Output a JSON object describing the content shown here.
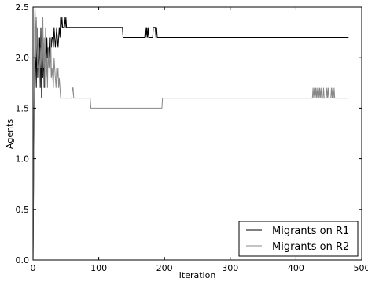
{
  "chart_data": {
    "type": "line",
    "title": "",
    "xlabel": "Iteration",
    "ylabel": "Agents",
    "xlim": [
      0,
      500
    ],
    "ylim": [
      0.0,
      2.5
    ],
    "xticks": [
      "0",
      "100",
      "200",
      "300",
      "400",
      "500"
    ],
    "yticks": [
      "0.0",
      "0.5",
      "1.0",
      "1.5",
      "2.0",
      "2.5"
    ],
    "grid": false,
    "legend_position": "bottom-right",
    "series": [
      {
        "name": "Migrants on R1",
        "color": "#000000",
        "points": [
          [
            0,
            0
          ],
          [
            2,
            1.8
          ],
          [
            3,
            2.5
          ],
          [
            4,
            2.0
          ],
          [
            5,
            1.7
          ],
          [
            6,
            2.3
          ],
          [
            7,
            1.8
          ],
          [
            8,
            2.1
          ],
          [
            9,
            1.9
          ],
          [
            10,
            2.2
          ],
          [
            11,
            1.7
          ],
          [
            12,
            2.3
          ],
          [
            13,
            1.6
          ],
          [
            14,
            2.0
          ],
          [
            15,
            1.8
          ],
          [
            16,
            2.1
          ],
          [
            17,
            1.7
          ],
          [
            18,
            2.0
          ],
          [
            19,
            2.1
          ],
          [
            20,
            1.9
          ],
          [
            21,
            2.2
          ],
          [
            22,
            2.0
          ],
          [
            23,
            2.1
          ],
          [
            24,
            2.0
          ],
          [
            25,
            2.2
          ],
          [
            26,
            2.1
          ],
          [
            27,
            2.2
          ],
          [
            28,
            2.1
          ],
          [
            29,
            2.2
          ],
          [
            30,
            2.2
          ],
          [
            31,
            2.1
          ],
          [
            32,
            2.3
          ],
          [
            33,
            2.2
          ],
          [
            34,
            2.1
          ],
          [
            35,
            2.2
          ],
          [
            36,
            2.3
          ],
          [
            37,
            2.2
          ],
          [
            38,
            2.1
          ],
          [
            39,
            2.2
          ],
          [
            40,
            2.3
          ],
          [
            41,
            2.2
          ],
          [
            42,
            2.4
          ],
          [
            43,
            2.3
          ],
          [
            44,
            2.4
          ],
          [
            45,
            2.3
          ],
          [
            47,
            2.3
          ],
          [
            48,
            2.4
          ],
          [
            49,
            2.3
          ],
          [
            50,
            2.4
          ],
          [
            51,
            2.3
          ],
          [
            136,
            2.3
          ],
          [
            137,
            2.2
          ],
          [
            170,
            2.2
          ],
          [
            171,
            2.3
          ],
          [
            172,
            2.2
          ],
          [
            173,
            2.3
          ],
          [
            174,
            2.2
          ],
          [
            175,
            2.3
          ],
          [
            176,
            2.2
          ],
          [
            182,
            2.2
          ],
          [
            183,
            2.3
          ],
          [
            186,
            2.3
          ],
          [
            187,
            2.2
          ],
          [
            188,
            2.3
          ],
          [
            189,
            2.2
          ],
          [
            480,
            2.2
          ]
        ]
      },
      {
        "name": "Migrants on R2",
        "color": "#888888",
        "points": [
          [
            0,
            0
          ],
          [
            2,
            1.9
          ],
          [
            3,
            2.5
          ],
          [
            4,
            2.0
          ],
          [
            5,
            2.4
          ],
          [
            6,
            2.1
          ],
          [
            7,
            1.9
          ],
          [
            8,
            2.2
          ],
          [
            9,
            2.0
          ],
          [
            10,
            1.8
          ],
          [
            11,
            2.1
          ],
          [
            12,
            1.9
          ],
          [
            13,
            2.2
          ],
          [
            14,
            1.8
          ],
          [
            15,
            2.4
          ],
          [
            16,
            1.9
          ],
          [
            17,
            2.2
          ],
          [
            18,
            1.7
          ],
          [
            19,
            2.3
          ],
          [
            20,
            1.8
          ],
          [
            21,
            2.0
          ],
          [
            22,
            1.7
          ],
          [
            23,
            2.1
          ],
          [
            24,
            1.9
          ],
          [
            25,
            2.0
          ],
          [
            26,
            1.8
          ],
          [
            27,
            2.2
          ],
          [
            28,
            1.8
          ],
          [
            29,
            1.9
          ],
          [
            30,
            1.8
          ],
          [
            31,
            1.7
          ],
          [
            32,
            2.0
          ],
          [
            33,
            1.9
          ],
          [
            34,
            1.8
          ],
          [
            35,
            1.7
          ],
          [
            36,
            1.9
          ],
          [
            37,
            1.8
          ],
          [
            38,
            1.9
          ],
          [
            39,
            1.7
          ],
          [
            40,
            1.8
          ],
          [
            41,
            1.7
          ],
          [
            42,
            1.6
          ],
          [
            59,
            1.6
          ],
          [
            60,
            1.7
          ],
          [
            61,
            1.7
          ],
          [
            62,
            1.6
          ],
          [
            87,
            1.6
          ],
          [
            88,
            1.5
          ],
          [
            196,
            1.5
          ],
          [
            197,
            1.6
          ],
          [
            425,
            1.6
          ],
          [
            426,
            1.7
          ],
          [
            427,
            1.6
          ],
          [
            428,
            1.7
          ],
          [
            429,
            1.6
          ],
          [
            430,
            1.7
          ],
          [
            431,
            1.6
          ],
          [
            432,
            1.7
          ],
          [
            433,
            1.6
          ],
          [
            434,
            1.7
          ],
          [
            435,
            1.6
          ],
          [
            436,
            1.7
          ],
          [
            437,
            1.6
          ],
          [
            438,
            1.7
          ],
          [
            439,
            1.6
          ],
          [
            441,
            1.6
          ],
          [
            442,
            1.7
          ],
          [
            443,
            1.6
          ],
          [
            446,
            1.6
          ],
          [
            447,
            1.7
          ],
          [
            448,
            1.6
          ],
          [
            449,
            1.7
          ],
          [
            450,
            1.6
          ],
          [
            453,
            1.6
          ],
          [
            454,
            1.7
          ],
          [
            455,
            1.6
          ],
          [
            456,
            1.7
          ],
          [
            457,
            1.6
          ],
          [
            458,
            1.7
          ],
          [
            459,
            1.6
          ],
          [
            480,
            1.6
          ]
        ]
      }
    ]
  }
}
